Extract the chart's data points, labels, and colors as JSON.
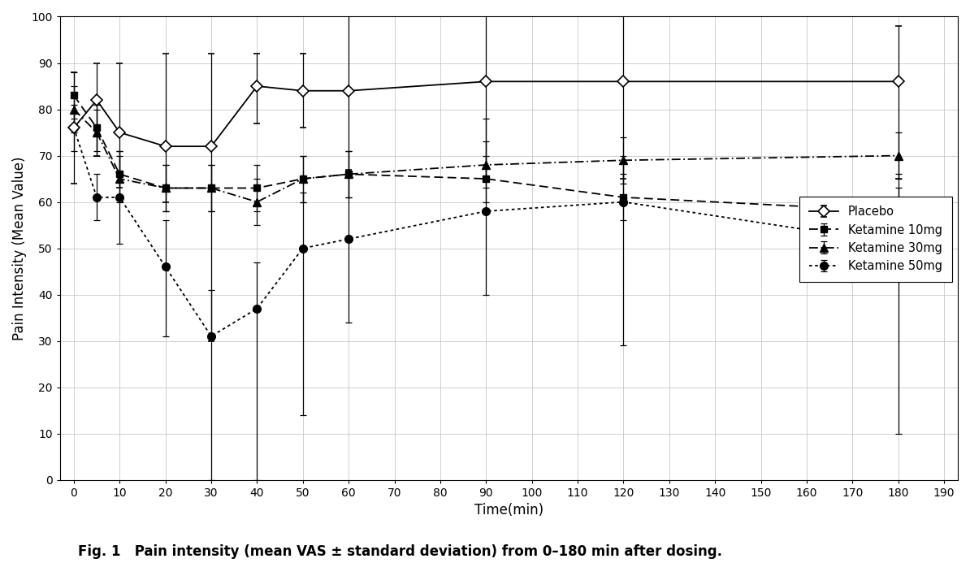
{
  "xlabel": "Time(min)",
  "ylabel": "Pain Intensity (Mean Value)",
  "caption": "Fig. 1   Pain intensity (mean VAS ± standard deviation) from 0–180 min after dosing.",
  "xlim": [
    -3,
    193
  ],
  "ylim": [
    0,
    100
  ],
  "xticks": [
    0,
    10,
    20,
    30,
    40,
    50,
    60,
    70,
    80,
    90,
    100,
    110,
    120,
    130,
    140,
    150,
    160,
    170,
    180,
    190
  ],
  "yticks": [
    0,
    10,
    20,
    30,
    40,
    50,
    60,
    70,
    80,
    90,
    100
  ],
  "placebo_x": [
    0,
    5,
    10,
    20,
    30,
    40,
    50,
    60,
    90,
    120,
    180
  ],
  "placebo_y": [
    76,
    82,
    75,
    72,
    72,
    85,
    84,
    84,
    86,
    86,
    86
  ],
  "placebo_lo": [
    12,
    12,
    12,
    12,
    42,
    8,
    8,
    17,
    21,
    21,
    21
  ],
  "placebo_hi": [
    12,
    8,
    15,
    20,
    20,
    7,
    8,
    16,
    14,
    14,
    12
  ],
  "ket10_x": [
    0,
    5,
    10,
    20,
    30,
    40,
    50,
    60,
    90,
    120,
    180
  ],
  "ket10_y": [
    83,
    76,
    66,
    63,
    63,
    63,
    65,
    66,
    65,
    61,
    58
  ],
  "ket10_lo": [
    5,
    5,
    5,
    5,
    5,
    5,
    5,
    5,
    5,
    5,
    5
  ],
  "ket10_hi": [
    5,
    5,
    5,
    5,
    5,
    5,
    5,
    5,
    5,
    5,
    5
  ],
  "ket30_x": [
    0,
    5,
    10,
    20,
    30,
    40,
    50,
    60,
    90,
    120,
    180
  ],
  "ket30_y": [
    80,
    75,
    65,
    63,
    63,
    60,
    65,
    66,
    68,
    69,
    70
  ],
  "ket30_lo": [
    5,
    5,
    5,
    5,
    5,
    5,
    5,
    5,
    5,
    5,
    5
  ],
  "ket30_hi": [
    5,
    5,
    5,
    5,
    5,
    5,
    5,
    5,
    5,
    5,
    5
  ],
  "ket50_x": [
    0,
    5,
    10,
    20,
    30,
    40,
    50,
    60,
    90,
    120,
    180
  ],
  "ket50_y": [
    76,
    61,
    61,
    46,
    31,
    37,
    50,
    52,
    58,
    60,
    51
  ],
  "ket50_lo": [
    5,
    5,
    10,
    15,
    31,
    37,
    36,
    18,
    18,
    31,
    41
  ],
  "ket50_hi": [
    5,
    5,
    10,
    10,
    10,
    10,
    12,
    14,
    20,
    10,
    15
  ],
  "background_color": "#ffffff",
  "grid_color": "#c8c8c8"
}
